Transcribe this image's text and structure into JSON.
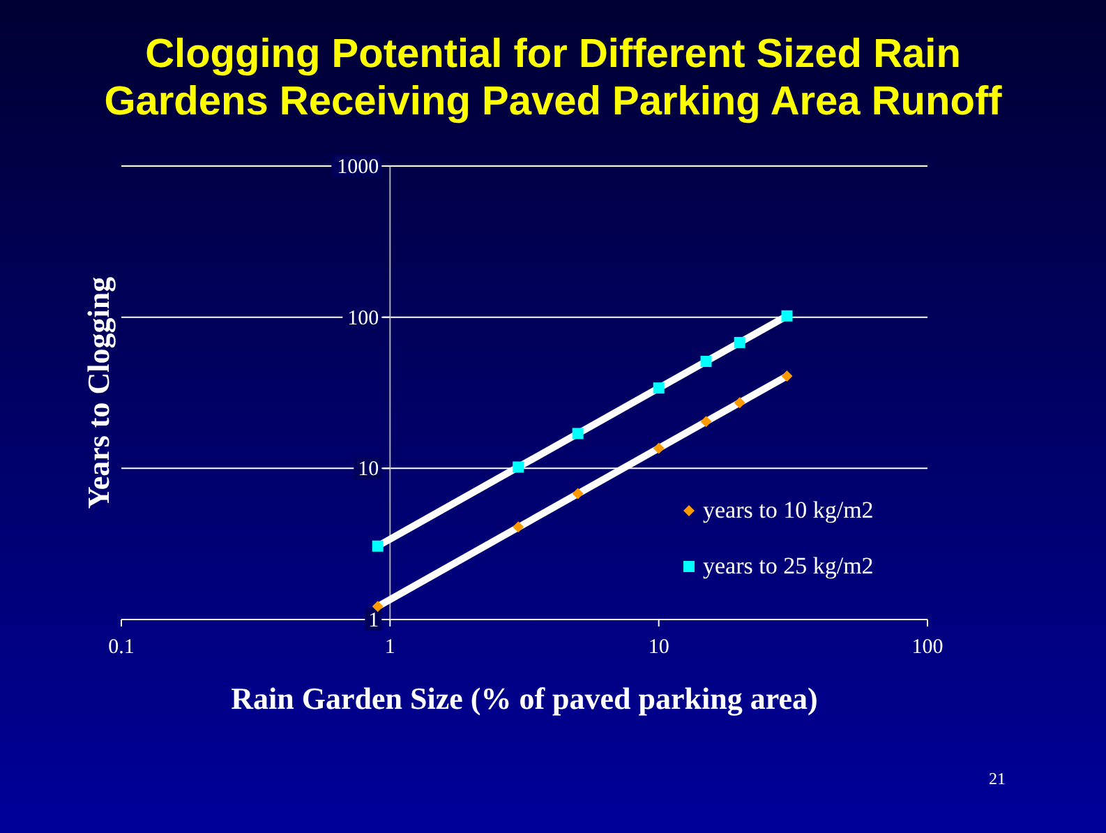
{
  "chart_data": {
    "type": "scatter",
    "title": "Clogging Potential for Different Sized Rain Gardens Receiving Paved Parking Area Runoff",
    "xlabel": "Rain Garden Size (% of paved parking area)",
    "ylabel": "Years to Clogging",
    "log": "xy",
    "xlim": [
      0.1,
      100
    ],
    "xticks": [
      0.1,
      1,
      10,
      100
    ],
    "ylim": [
      1,
      1000
    ],
    "yticks": [
      1,
      10,
      100,
      1000
    ],
    "grid": "y",
    "legend": "right",
    "annotations": [
      "21"
    ],
    "series": [
      {
        "type": "line",
        "color": "#ffffff",
        "x": [
          0.9,
          30
        ],
        "values": [
          3.06,
          102
        ]
      },
      {
        "type": "line",
        "color": "#ffffff",
        "x": [
          0.9,
          30
        ],
        "values": [
          1.22,
          40.8
        ]
      },
      {
        "name": "years to 10 kg/m2",
        "color": "#ff9900",
        "marker": "diamond",
        "x": [
          0.9,
          3,
          5,
          10,
          15,
          20,
          30
        ],
        "values": [
          1.22,
          4.1,
          6.8,
          13.6,
          20.4,
          27.2,
          40.8
        ]
      },
      {
        "name": "years to 25 kg/m2",
        "color": "#00ffff",
        "marker": "square",
        "x": [
          0.9,
          3,
          5,
          10,
          15,
          20,
          30
        ],
        "values": [
          3.06,
          10.2,
          17,
          34,
          51,
          68,
          102
        ]
      }
    ]
  }
}
